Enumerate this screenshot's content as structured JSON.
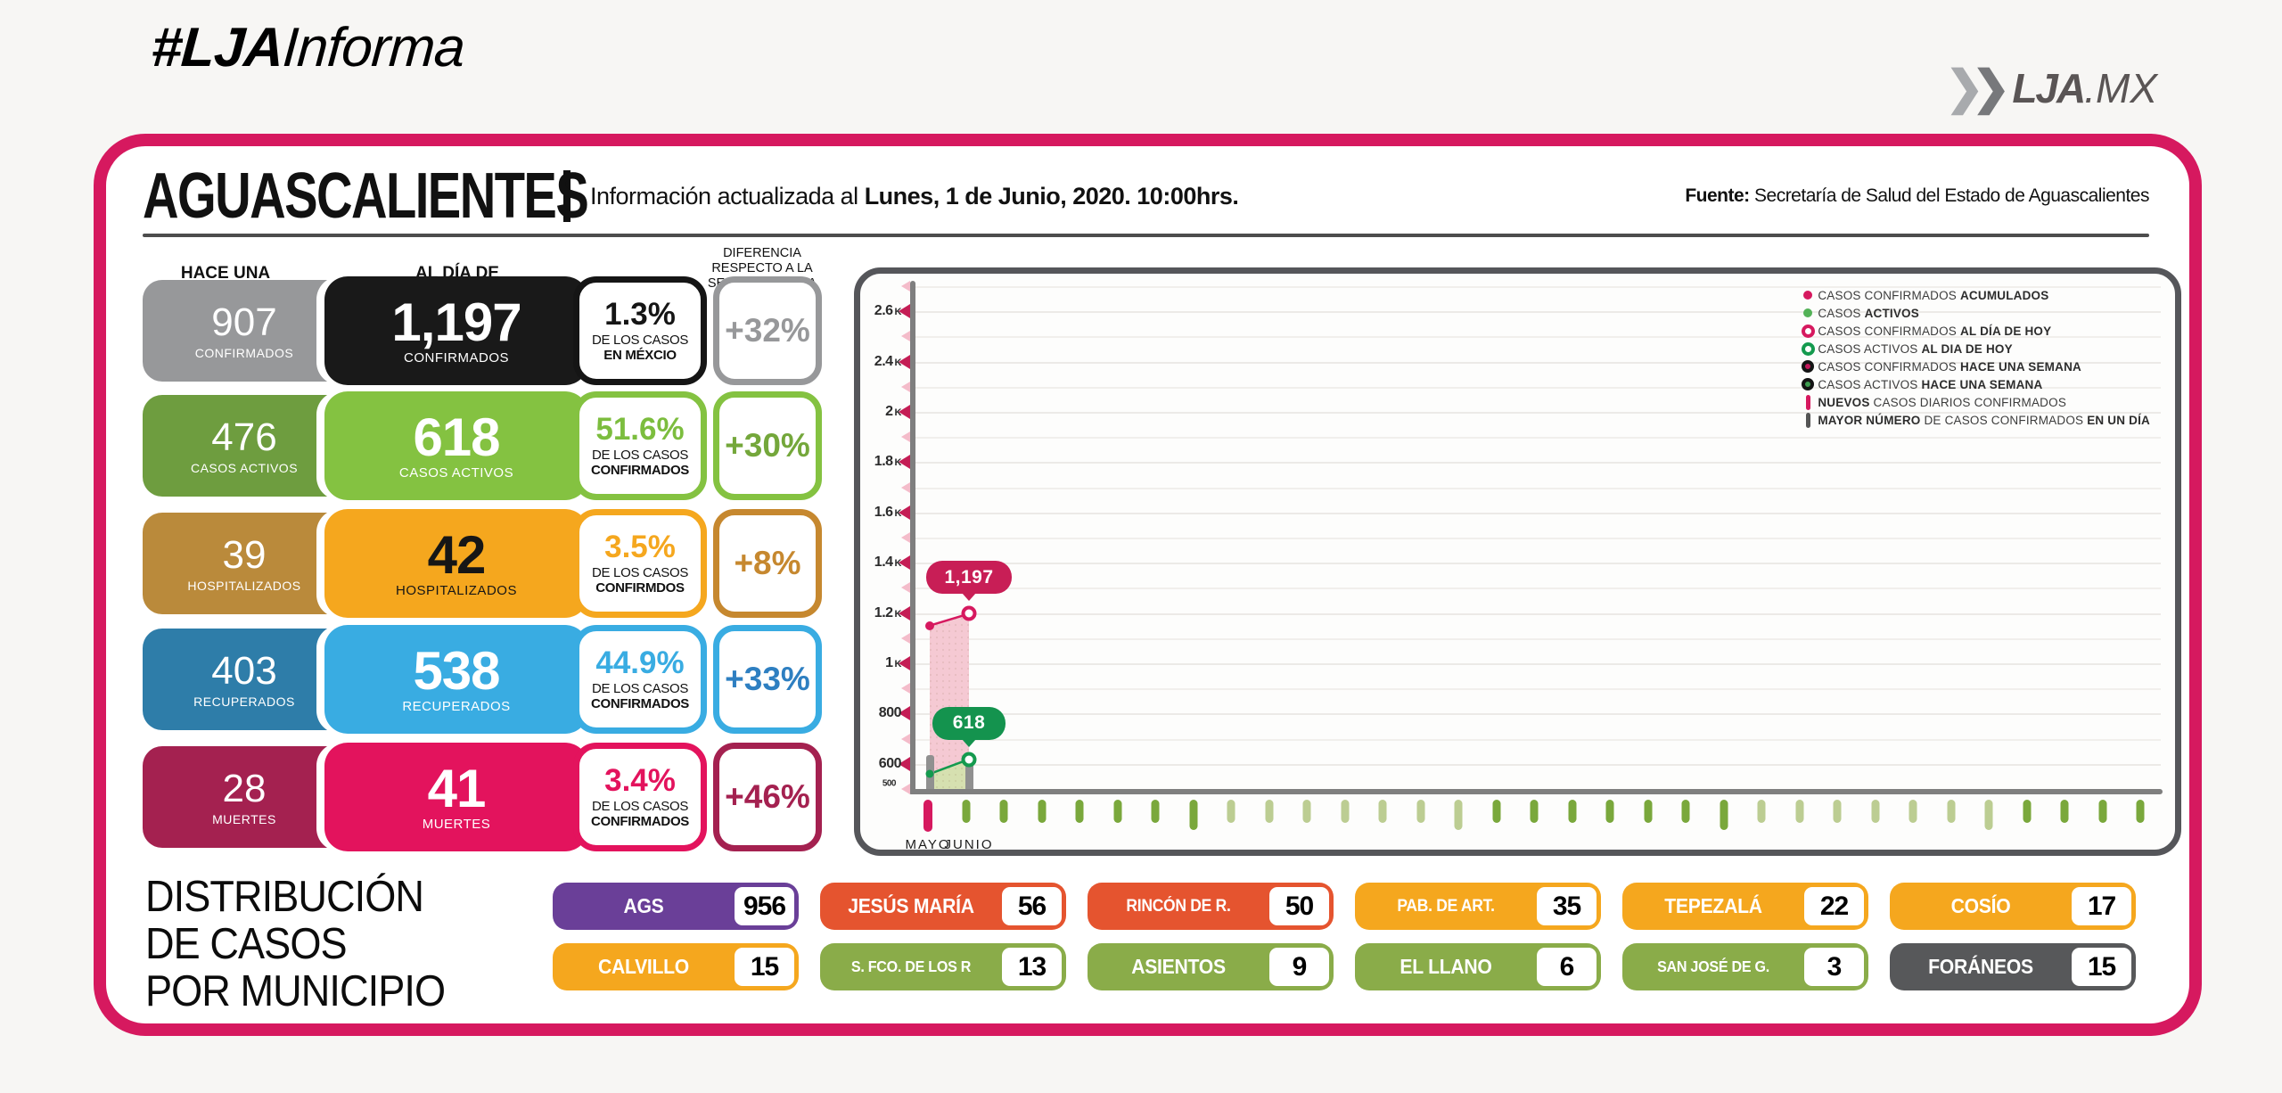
{
  "page": {
    "brand_hash": "#LJA",
    "brand_rest": "Informa",
    "logo_chevron": "❯",
    "logo_main": "LJA",
    "logo_suffix": ".MX"
  },
  "header": {
    "state": "AGUASCALIENTES",
    "info_prefix": "Información actualizada al ",
    "info_bold": "Lunes, 1 de Junio, 2020. 10:00hrs.",
    "source_label": "Fuente:",
    "source_text": " Secretaría de Salud del Estado de Aguascalientes"
  },
  "columns": {
    "last_week": "HACE UNA SEMANA",
    "today": "AL DÍA DE HOY",
    "diff_lines": [
      "DIFERENCIA",
      "RESPECTO A LA",
      "SEMANA PASADA"
    ]
  },
  "stats": [
    {
      "last_week": {
        "value": "907",
        "label": "CONFIRMADOS"
      },
      "today": {
        "value": "1,197",
        "label": "CONFIRMADOS"
      },
      "pct": {
        "value": "1.3%",
        "line1": "DE LOS CASOS",
        "line2": "EN MÉXCIO"
      },
      "diff": "+32%",
      "colors": {
        "left": "#97989a",
        "main": "#191919",
        "main_text": "#ffffff",
        "pct": "#151515",
        "pct_border": "#151515",
        "diff": "#97989a",
        "diff_border": "#97989a"
      }
    },
    {
      "last_week": {
        "value": "476",
        "label": "CASOS ACTIVOS"
      },
      "today": {
        "value": "618",
        "label": "CASOS ACTIVOS"
      },
      "pct": {
        "value": "51.6%",
        "line1": "DE LOS CASOS",
        "line2": "CONFIRMADOS"
      },
      "diff": "+30%",
      "colors": {
        "left": "#6e9d3f",
        "main": "#84c241",
        "main_text": "#ffffff",
        "pct": "#7cbd3e",
        "pct_border": "#84c241",
        "diff": "#74a73b",
        "diff_border": "#84c241"
      }
    },
    {
      "last_week": {
        "value": "39",
        "label": "HOSPITALIZADOS"
      },
      "today": {
        "value": "42",
        "label": "HOSPITALIZADOS"
      },
      "pct": {
        "value": "3.5%",
        "line1": "DE LOS CASOS",
        "line2": "CONFIRMDOS"
      },
      "diff": "+8%",
      "colors": {
        "left": "#ba8a3b",
        "main": "#f5a71e",
        "main_text": "#161616",
        "pct": "#f5a71e",
        "pct_border": "#f5a71e",
        "diff": "#c6882f",
        "diff_border": "#c6882f"
      }
    },
    {
      "last_week": {
        "value": "403",
        "label": "RECUPERADOS"
      },
      "today": {
        "value": "538",
        "label": "RECUPERADOS"
      },
      "pct": {
        "value": "44.9%",
        "line1": "DE LOS CASOS",
        "line2": "CONFIRMADOS"
      },
      "diff": "+33%",
      "colors": {
        "left": "#2e7da9",
        "main": "#39ace2",
        "main_text": "#ffffff",
        "pct": "#39ace2",
        "pct_border": "#39ace2",
        "diff": "#2e7fc1",
        "diff_border": "#39ace2"
      }
    },
    {
      "last_week": {
        "value": "28",
        "label": "MUERTES"
      },
      "today": {
        "value": "41",
        "label": "MUERTES"
      },
      "pct": {
        "value": "3.4%",
        "line1": "DE LOS CASOS",
        "line2": "CONFIRMADOS"
      },
      "diff": "+46%",
      "colors": {
        "left": "#a42150",
        "main": "#e3135d",
        "main_text": "#ffffff",
        "pct": "#e3135d",
        "pct_border": "#e3135d",
        "diff": "#a42150",
        "diff_border": "#a42150"
      }
    }
  ],
  "chart_data": {
    "type": "area",
    "title": "",
    "axis_range": [
      500,
      2700
    ],
    "grid": true,
    "y_axis": {
      "major_labels": [
        "2.6 K",
        "2.4 K",
        "2 K",
        "1.8 K",
        "1.6 K",
        "1.4 K",
        "1.2 K",
        "1 K",
        "800",
        "600"
      ],
      "base_label": "500"
    },
    "x_axis": {
      "month_labels": [
        "MAYO",
        "JUNIO"
      ],
      "tick_count": 33
    },
    "series": [
      {
        "name": "CASOS CONFIRMADOS ACUMULADOS",
        "color": "#d6195f",
        "area_color": "#f5c9d3",
        "x": [
          "31 Mayo",
          "1 Junio"
        ],
        "values": [
          1150,
          1197
        ],
        "end_label": "1,197",
        "label_bg": "#c81e56"
      },
      {
        "name": "CASOS ACTIVOS",
        "color": "#149a4e",
        "area_color": "#d6e0b0",
        "x": [
          "31 Mayo",
          "1 Junio"
        ],
        "values": [
          560,
          618
        ],
        "end_label": "618",
        "label_bg": "#14934e"
      }
    ],
    "daily_bars": {
      "color": "#909090",
      "positions": [
        "31 Mayo",
        "1 Junio"
      ]
    },
    "legend": [
      {
        "icon": "dot-pink",
        "segments": [
          {
            "t": "CASOS CONFIRMADOS ",
            "b": false
          },
          {
            "t": "ACUMULADOS",
            "b": true
          }
        ]
      },
      {
        "icon": "dot-green",
        "segments": [
          {
            "t": "CASOS ",
            "b": false
          },
          {
            "t": "ACTIVOS",
            "b": true
          }
        ]
      },
      {
        "icon": "ring-pink",
        "segments": [
          {
            "t": "CASOS CONFIRMADOS ",
            "b": false
          },
          {
            "t": "AL DÍA DE HOY",
            "b": true
          }
        ]
      },
      {
        "icon": "ring-green",
        "segments": [
          {
            "t": "CASOS ACTIVOS ",
            "b": false
          },
          {
            "t": "AL DIA DE HOY",
            "b": true
          }
        ]
      },
      {
        "icon": "ring-black-pink",
        "segments": [
          {
            "t": "CASOS CONFIRMADOS ",
            "b": false
          },
          {
            "t": "HACE UNA SEMANA",
            "b": true
          }
        ]
      },
      {
        "icon": "ring-black-green",
        "segments": [
          {
            "t": "CASOS ACTIVOS ",
            "b": false
          },
          {
            "t": "HACE UNA SEMANA",
            "b": true
          }
        ]
      },
      {
        "icon": "bar-pink",
        "segments": [
          {
            "t": "NUEVOS",
            "b": true
          },
          {
            "t": " CASOS DIARIOS CONFIRMADOS",
            "b": false
          }
        ]
      },
      {
        "icon": "bar-gray",
        "segments": [
          {
            "t": "MAYOR NÚMERO",
            "b": true
          },
          {
            "t": " DE CASOS CONFIRMADOS ",
            "b": false
          },
          {
            "t": "EN UN DÍA",
            "b": true
          }
        ]
      }
    ],
    "colors": {
      "tick_major": "#c41d55",
      "tick_minor": "#f4bcca",
      "axis": "#7f7f7f",
      "below_tick_first": "#d6195f",
      "below_tick_dark": "#7aa83c",
      "below_tick_pale": "#bccd92",
      "legend_dot_green": "#53b257",
      "legend_black": "#141414",
      "legend_gray": "#555555"
    }
  },
  "municipios": {
    "title_lines": [
      "DISTRIBUCIÓN",
      "DE CASOS",
      "POR MUNICIPIO"
    ],
    "rows": [
      [
        {
          "name": "AGS",
          "value": "956",
          "color": "#6a3f98"
        },
        {
          "name": "JESÚS MARÍA",
          "value": "56",
          "color": "#e5542f"
        },
        {
          "name": "RINCÓN DE R.",
          "value": "50",
          "color": "#e5542f"
        },
        {
          "name": "PAB. DE ART.",
          "value": "35",
          "color": "#f5a71e"
        },
        {
          "name": "TEPEZALÁ",
          "value": "22",
          "color": "#f5a71e"
        },
        {
          "name": "COSÍO",
          "value": "17",
          "color": "#f5a71e"
        }
      ],
      [
        {
          "name": "CALVILLO",
          "value": "15",
          "color": "#f5a71e"
        },
        {
          "name": "S. FCO. DE LOS R",
          "value": "13",
          "color": "#8aac49"
        },
        {
          "name": "ASIENTOS",
          "value": "9",
          "color": "#8aac49"
        },
        {
          "name": "EL LLANO",
          "value": "6",
          "color": "#8aac49"
        },
        {
          "name": "SAN JOSÉ DE G.",
          "value": "3",
          "color": "#8aac49"
        },
        {
          "name": "FORÁNEOS",
          "value": "15",
          "color": "#57585a"
        }
      ]
    ]
  }
}
